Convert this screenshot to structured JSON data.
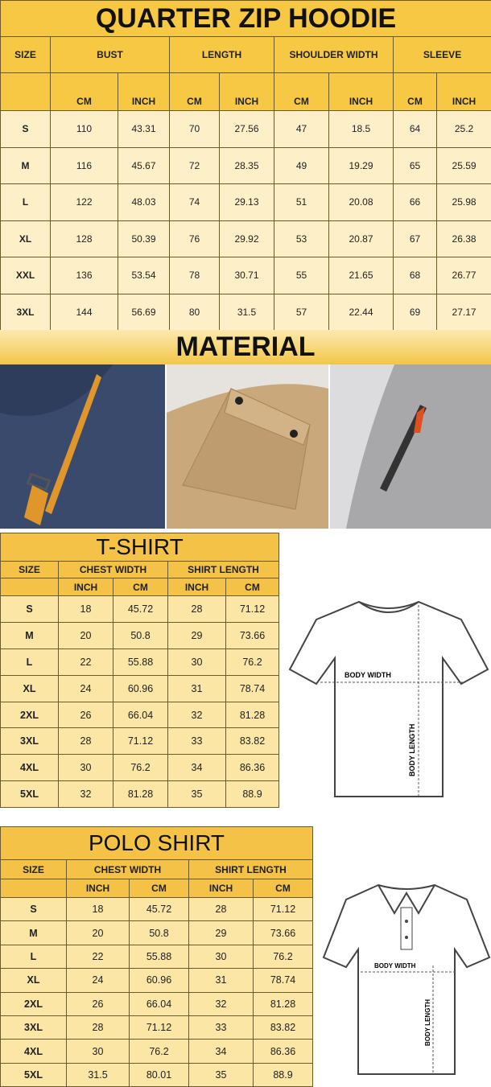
{
  "hoodie": {
    "title": "QUARTER ZIP HOODIE",
    "size_label": "SIZE",
    "groups": [
      "BUST",
      "LENGTH",
      "SHOULDER WIDTH",
      "SLEEVE"
    ],
    "units": [
      "CM",
      "INCH"
    ],
    "rows": [
      [
        "S",
        "110",
        "43.31",
        "70",
        "27.56",
        "47",
        "18.5",
        "64",
        "25.2"
      ],
      [
        "M",
        "116",
        "45.67",
        "72",
        "28.35",
        "49",
        "19.29",
        "65",
        "25.59"
      ],
      [
        "L",
        "122",
        "48.03",
        "74",
        "29.13",
        "51",
        "20.08",
        "66",
        "25.98"
      ],
      [
        "XL",
        "128",
        "50.39",
        "76",
        "29.92",
        "53",
        "20.87",
        "67",
        "26.38"
      ],
      [
        "XXL",
        "136",
        "53.54",
        "78",
        "30.71",
        "55",
        "21.65",
        "68",
        "26.77"
      ],
      [
        "3XL",
        "144",
        "56.69",
        "80",
        "31.5",
        "57",
        "22.44",
        "69",
        "27.17"
      ]
    ]
  },
  "material": {
    "title": "MATERIAL",
    "photos": [
      "navy-pocket-zipper-photo",
      "khaki-flap-pocket-photo",
      "grey-sleeve-zipper-photo"
    ]
  },
  "tshirt": {
    "title": "T-SHIRT",
    "size_label": "SIZE",
    "groups": [
      "CHEST WIDTH",
      "SHIRT LENGTH"
    ],
    "units": [
      "INCH",
      "CM"
    ],
    "rows": [
      [
        "S",
        "18",
        "45.72",
        "28",
        "71.12"
      ],
      [
        "M",
        "20",
        "50.8",
        "29",
        "73.66"
      ],
      [
        "L",
        "22",
        "55.88",
        "30",
        "76.2"
      ],
      [
        "XL",
        "24",
        "60.96",
        "31",
        "78.74"
      ],
      [
        "2XL",
        "26",
        "66.04",
        "32",
        "81.28"
      ],
      [
        "3XL",
        "28",
        "71.12",
        "33",
        "83.82"
      ],
      [
        "4XL",
        "30",
        "76.2",
        "34",
        "86.36"
      ],
      [
        "5XL",
        "32",
        "81.28",
        "35",
        "88.9"
      ]
    ],
    "diagram": {
      "width_label": "BODY WIDTH",
      "length_label": "BODY LENGTH"
    }
  },
  "polo": {
    "title": "POLO SHIRT",
    "size_label": "SIZE",
    "groups": [
      "CHEST WIDTH",
      "SHIRT LENGTH"
    ],
    "units": [
      "INCH",
      "CM"
    ],
    "rows": [
      [
        "S",
        "18",
        "45.72",
        "28",
        "71.12"
      ],
      [
        "M",
        "20",
        "50.8",
        "29",
        "73.66"
      ],
      [
        "L",
        "22",
        "55.88",
        "30",
        "76.2"
      ],
      [
        "XL",
        "24",
        "60.96",
        "31",
        "78.74"
      ],
      [
        "2XL",
        "26",
        "66.04",
        "32",
        "81.28"
      ],
      [
        "3XL",
        "28",
        "71.12",
        "33",
        "83.82"
      ],
      [
        "4XL",
        "30",
        "76.2",
        "34",
        "86.36"
      ],
      [
        "5XL",
        "31.5",
        "80.01",
        "35",
        "88.9"
      ]
    ],
    "diagram": {
      "width_label": "BODY WIDTH",
      "length_label": "BODY LENGTH"
    }
  },
  "colors": {
    "header": "#f7c843",
    "row": "#fdf0c8",
    "small_row": "#fbe6a6"
  }
}
